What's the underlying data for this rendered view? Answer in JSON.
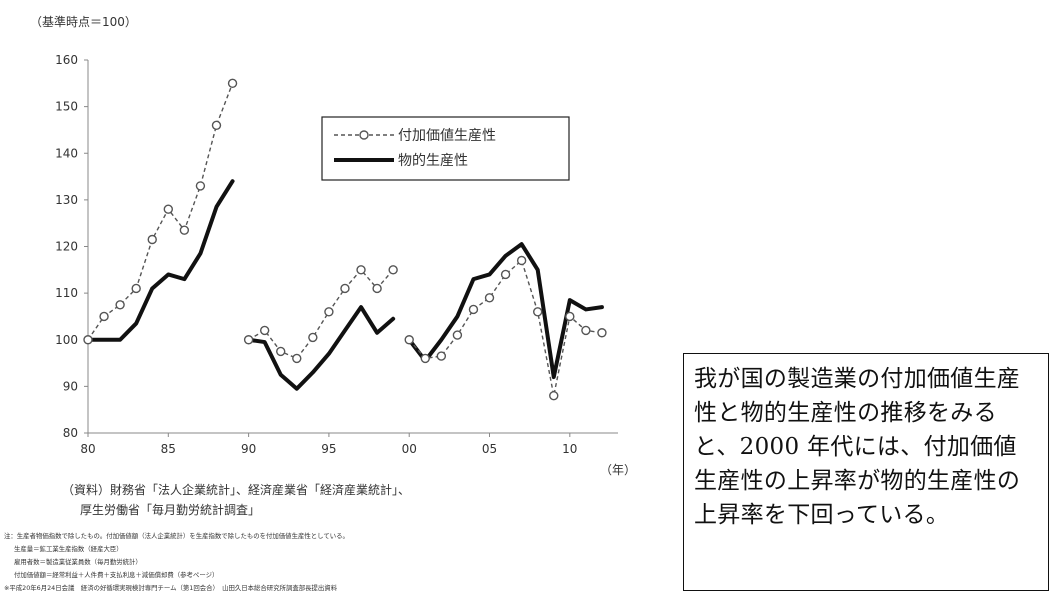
{
  "chart_data": {
    "type": "line",
    "ylabel": "（基準時点＝100）",
    "xlabel": "（年）",
    "ylim": [
      80,
      160
    ],
    "yticks": [
      80,
      90,
      100,
      110,
      120,
      130,
      140,
      150,
      160
    ],
    "xlim": [
      1980,
      2013
    ],
    "xticks": [
      {
        "x": 1980,
        "label": "80"
      },
      {
        "x": 1985,
        "label": "85"
      },
      {
        "x": 1990,
        "label": "90"
      },
      {
        "x": 1995,
        "label": "95"
      },
      {
        "x": 2000,
        "label": "00"
      },
      {
        "x": 2005,
        "label": "05"
      },
      {
        "x": 2010,
        "label": "10"
      }
    ],
    "legend_position": "top-right",
    "series": [
      {
        "name": "付加価値生産性",
        "style": "dashed-circle-markers",
        "color": "#555555",
        "segments": [
          [
            [
              1980,
              100
            ],
            [
              1981,
              105
            ],
            [
              1982,
              107.5
            ],
            [
              1983,
              111
            ],
            [
              1984,
              121.5
            ],
            [
              1985,
              128
            ],
            [
              1986,
              123.5
            ],
            [
              1987,
              133
            ],
            [
              1988,
              146
            ],
            [
              1989,
              155
            ]
          ],
          [
            [
              1990,
              100
            ],
            [
              1991,
              102
            ],
            [
              1992,
              97.5
            ],
            [
              1993,
              96
            ],
            [
              1994,
              100.5
            ],
            [
              1995,
              106
            ],
            [
              1996,
              111
            ],
            [
              1997,
              115
            ],
            [
              1998,
              111
            ],
            [
              1999,
              115
            ]
          ],
          [
            [
              2000,
              100
            ],
            [
              2001,
              96
            ],
            [
              2002,
              96.5
            ],
            [
              2003,
              101
            ],
            [
              2004,
              106.5
            ],
            [
              2005,
              109
            ],
            [
              2006,
              114
            ],
            [
              2007,
              117
            ],
            [
              2008,
              106
            ],
            [
              2009,
              88
            ],
            [
              2010,
              105
            ],
            [
              2011,
              102
            ],
            [
              2012,
              101.5
            ]
          ]
        ]
      },
      {
        "name": "物的生産性",
        "style": "thick-solid",
        "color": "#111111",
        "segments": [
          [
            [
              1980,
              100
            ],
            [
              1981,
              100
            ],
            [
              1982,
              100
            ],
            [
              1983,
              103.5
            ],
            [
              1984,
              111
            ],
            [
              1985,
              114
            ],
            [
              1986,
              113
            ],
            [
              1987,
              118.5
            ],
            [
              1988,
              128.5
            ],
            [
              1989,
              134
            ]
          ],
          [
            [
              1990,
              100
            ],
            [
              1991,
              99.5
            ],
            [
              1992,
              92.5
            ],
            [
              1993,
              89.5
            ],
            [
              1994,
              93
            ],
            [
              1995,
              97
            ],
            [
              1996,
              102
            ],
            [
              1997,
              107
            ],
            [
              1998,
              101.5
            ],
            [
              1999,
              104.5
            ]
          ],
          [
            [
              2000,
              100
            ],
            [
              2001,
              95.5
            ],
            [
              2002,
              100
            ],
            [
              2003,
              105
            ],
            [
              2004,
              113
            ],
            [
              2005,
              114
            ],
            [
              2006,
              118
            ],
            [
              2007,
              120.5
            ],
            [
              2008,
              115
            ],
            [
              2009,
              92
            ],
            [
              2010,
              108.5
            ],
            [
              2011,
              106.5
            ],
            [
              2012,
              107
            ]
          ]
        ]
      }
    ]
  },
  "source": {
    "line1": "（資料）財務省「法人企業統計」、経済産業省「経済産業統計」、",
    "line2": "厚生労働省「毎月勤労統計調査」"
  },
  "footnotes": [
    "注：生産者物価指数で除したもの。付加価値額（法人企業統計）を生産指数で除したものを付加価値生産性としている。",
    "生産量＝鉱工業生産指数（経産大臣）",
    "雇用者数＝製造業従業員数（毎月勤労統計）",
    "付加価値額＝経常利益＋人件費＋支払利息＋減価償却費（参考ページ）",
    "※平成20年6月24日会議　経済の好循環実現検討専門チーム（第1回会合）　山田久日本総合研究所調査部長提出資料"
  ],
  "note": {
    "text": "我が国の製造業の付加価値生産性と物的生産性の推移をみると、2000 年代には、付加価値生産性の上昇率が物的生産性の上昇率を下回っている。"
  }
}
